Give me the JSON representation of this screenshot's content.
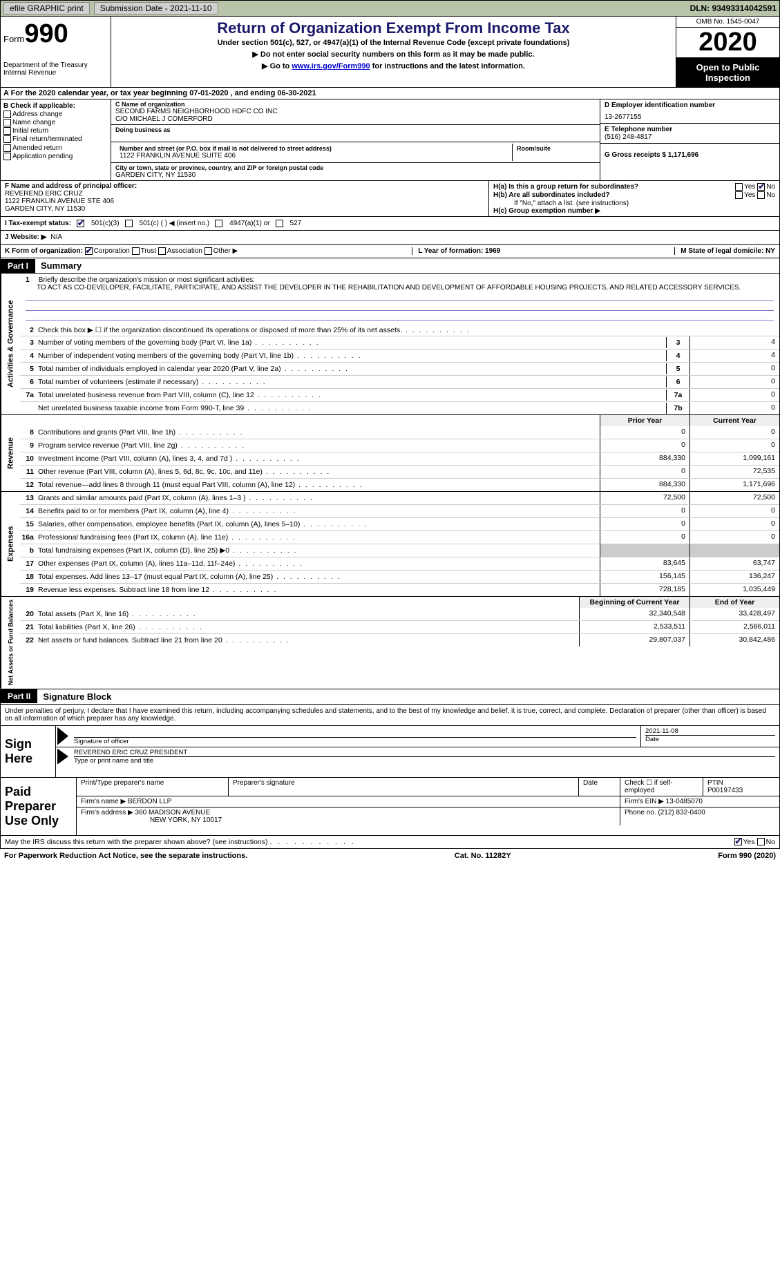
{
  "topbar": {
    "efile_label": "efile GRAPHIC print",
    "submission_label": "Submission Date - 2021-11-10",
    "dln_label": "DLN: 93493314042591"
  },
  "header": {
    "form_word": "Form",
    "form_num": "990",
    "dept": "Department of the Treasury\nInternal Revenue",
    "title": "Return of Organization Exempt From Income Tax",
    "subtitle": "Under section 501(c), 527, or 4947(a)(1) of the Internal Revenue Code (except private foundations)",
    "arrow1": "▶ Do not enter social security numbers on this form as it may be made public.",
    "arrow2_pre": "▶ Go to ",
    "arrow2_link": "www.irs.gov/Form990",
    "arrow2_post": " for instructions and the latest information.",
    "omb": "OMB No. 1545-0047",
    "year": "2020",
    "open": "Open to Public Inspection"
  },
  "lineA": "A For the 2020 calendar year, or tax year beginning 07-01-2020     , and ending 06-30-2021",
  "boxB": {
    "hdr": "B Check if applicable:",
    "opts": [
      "Address change",
      "Name change",
      "Initial return",
      "Final return/terminated",
      "Amended return",
      "Application pending"
    ]
  },
  "boxC": {
    "name_lbl": "C Name of organization",
    "name": "SECOND FARMS NEIGHBORHOOD HDFC CO INC",
    "care": "C/O MICHAEL J COMERFORD",
    "dba_lbl": "Doing business as",
    "addr_lbl": "Number and street (or P.O. box if mail is not delivered to street address)",
    "addr": "1122 FRANKLIN AVENUE SUITE 406",
    "room_lbl": "Room/suite",
    "city_lbl": "City or town, state or province, country, and ZIP or foreign postal code",
    "city": "GARDEN CITY, NY  11530"
  },
  "boxDright": {
    "d_lbl": "D Employer identification number",
    "d_val": "13-2677155",
    "e_lbl": "E Telephone number",
    "e_val": "(516) 248-4817",
    "g_lbl": "G Gross receipts $ 1,171,696"
  },
  "boxF": {
    "lbl": "F Name and address of principal officer:",
    "name": "REVEREND ERIC CRUZ",
    "addr1": "1122 FRANKLIN AVENUE STE 406",
    "addr2": "GARDEN CITY, NY  11530"
  },
  "boxH": {
    "ha": "H(a)  Is this a group return for subordinates?",
    "hb": "H(b)  Are all subordinates included?",
    "hb_note": "If \"No,\" attach a list. (see instructions)",
    "hc": "H(c)  Group exemption number ▶",
    "yes": "Yes",
    "no": "No"
  },
  "taxexempt": {
    "i_lbl": "I   Tax-exempt status:",
    "c3": "501(c)(3)",
    "c": "501(c) (  ) ◀ (insert no.)",
    "a1": "4947(a)(1) or",
    "s527": "527"
  },
  "website": {
    "lbl": "J   Website: ▶",
    "val": "N/A"
  },
  "kform": {
    "lbl": "K Form of organization:",
    "opts": [
      "Corporation",
      "Trust",
      "Association",
      "Other ▶"
    ],
    "l": "L Year of formation: 1969",
    "m": "M State of legal domicile: NY"
  },
  "part1": {
    "tab": "Part I",
    "title": "Summary"
  },
  "mission": {
    "num": "1",
    "lbl": "Briefly describe the organization's mission or most significant activities:",
    "txt": "TO ACT AS CO-DEVELOPER, FACILITATE, PARTICIPATE, AND ASSIST THE DEVELOPER IN THE REHABILITATION AND DEVELOPMENT OF AFFORDABLE HOUSING PROJECTS, AND RELATED ACCESSORY SERVICES."
  },
  "gov_lines": [
    {
      "n": "2",
      "d": "Check this box ▶ ☐  if the organization discontinued its operations or disposed of more than 25% of its net assets.",
      "v": ""
    },
    {
      "n": "3",
      "d": "Number of voting members of the governing body (Part VI, line 1a)",
      "nc": "3",
      "v": "4"
    },
    {
      "n": "4",
      "d": "Number of independent voting members of the governing body (Part VI, line 1b)",
      "nc": "4",
      "v": "4"
    },
    {
      "n": "5",
      "d": "Total number of individuals employed in calendar year 2020 (Part V, line 2a)",
      "nc": "5",
      "v": "0"
    },
    {
      "n": "6",
      "d": "Total number of volunteers (estimate if necessary)",
      "nc": "6",
      "v": "0"
    },
    {
      "n": "7a",
      "d": "Total unrelated business revenue from Part VIII, column (C), line 12",
      "nc": "7a",
      "v": "0"
    },
    {
      "n": "",
      "d": "Net unrelated business taxable income from Form 990-T, line 39",
      "nc": "7b",
      "v": "0"
    }
  ],
  "col_hdrs": {
    "prior": "Prior Year",
    "current": "Current Year",
    "boy": "Beginning of Current Year",
    "eoy": "End of Year"
  },
  "revenue_lines": [
    {
      "n": "8",
      "d": "Contributions and grants (Part VIII, line 1h)",
      "p": "0",
      "c": "0"
    },
    {
      "n": "9",
      "d": "Program service revenue (Part VIII, line 2g)",
      "p": "0",
      "c": "0"
    },
    {
      "n": "10",
      "d": "Investment income (Part VIII, column (A), lines 3, 4, and 7d )",
      "p": "884,330",
      "c": "1,099,161"
    },
    {
      "n": "11",
      "d": "Other revenue (Part VIII, column (A), lines 5, 6d, 8c, 9c, 10c, and 11e)",
      "p": "0",
      "c": "72,535"
    },
    {
      "n": "12",
      "d": "Total revenue—add lines 8 through 11 (must equal Part VIII, column (A), line 12)",
      "p": "884,330",
      "c": "1,171,696"
    }
  ],
  "expense_lines": [
    {
      "n": "13",
      "d": "Grants and similar amounts paid (Part IX, column (A), lines 1–3 )",
      "p": "72,500",
      "c": "72,500"
    },
    {
      "n": "14",
      "d": "Benefits paid to or for members (Part IX, column (A), line 4)",
      "p": "0",
      "c": "0"
    },
    {
      "n": "15",
      "d": "Salaries, other compensation, employee benefits (Part IX, column (A), lines 5–10)",
      "p": "0",
      "c": "0"
    },
    {
      "n": "16a",
      "d": "Professional fundraising fees (Part IX, column (A), line 11e)",
      "p": "0",
      "c": "0"
    },
    {
      "n": "b",
      "d": "Total fundraising expenses (Part IX, column (D), line 25) ▶0",
      "p": "",
      "c": "",
      "gray": true
    },
    {
      "n": "17",
      "d": "Other expenses (Part IX, column (A), lines 11a–11d, 11f–24e)",
      "p": "83,645",
      "c": "63,747"
    },
    {
      "n": "18",
      "d": "Total expenses. Add lines 13–17 (must equal Part IX, column (A), line 25)",
      "p": "156,145",
      "c": "136,247"
    },
    {
      "n": "19",
      "d": "Revenue less expenses. Subtract line 18 from line 12",
      "p": "728,185",
      "c": "1,035,449"
    }
  ],
  "netasset_lines": [
    {
      "n": "20",
      "d": "Total assets (Part X, line 16)",
      "p": "32,340,548",
      "c": "33,428,497"
    },
    {
      "n": "21",
      "d": "Total liabilities (Part X, line 26)",
      "p": "2,533,511",
      "c": "2,586,011"
    },
    {
      "n": "22",
      "d": "Net assets or fund balances. Subtract line 21 from line 20",
      "p": "29,807,037",
      "c": "30,842,486"
    }
  ],
  "vlabels": {
    "gov": "Activities & Governance",
    "rev": "Revenue",
    "exp": "Expenses",
    "net": "Net Assets or Fund Balances"
  },
  "part2": {
    "tab": "Part II",
    "title": "Signature Block"
  },
  "sig_decl": "Under penalties of perjury, I declare that I have examined this return, including accompanying schedules and statements, and to the best of my knowledge and belief, it is true, correct, and complete. Declaration of preparer (other than officer) is based on all information of which preparer has any knowledge.",
  "sign": {
    "here": "Sign Here",
    "sig_lbl": "Signature of officer",
    "date": "2021-11-08",
    "date_lbl": "Date",
    "name": "REVEREND ERIC CRUZ  PRESIDENT",
    "name_lbl": "Type or print name and title"
  },
  "paid": {
    "lbl": "Paid Preparer Use Only",
    "h1": "Print/Type preparer's name",
    "h2": "Preparer's signature",
    "h3": "Date",
    "h4": "Check ☐ if self-employed",
    "h5": "PTIN",
    "ptin": "P00197433",
    "firm_lbl": "Firm's name    ▶",
    "firm": "BERDON LLP",
    "ein_lbl": "Firm's EIN ▶",
    "ein": "13-0485070",
    "addr_lbl": "Firm's address ▶",
    "addr": "360 MADISON AVENUE",
    "addr2": "NEW YORK, NY  10017",
    "phone_lbl": "Phone no.",
    "phone": "(212) 832-0400"
  },
  "discuss": {
    "q": "May the IRS discuss this return with the preparer shown above? (see instructions)",
    "yes": "Yes",
    "no": "No"
  },
  "footer": {
    "left": "For Paperwork Reduction Act Notice, see the separate instructions.",
    "mid": "Cat. No. 11282Y",
    "right": "Form 990 (2020)"
  }
}
